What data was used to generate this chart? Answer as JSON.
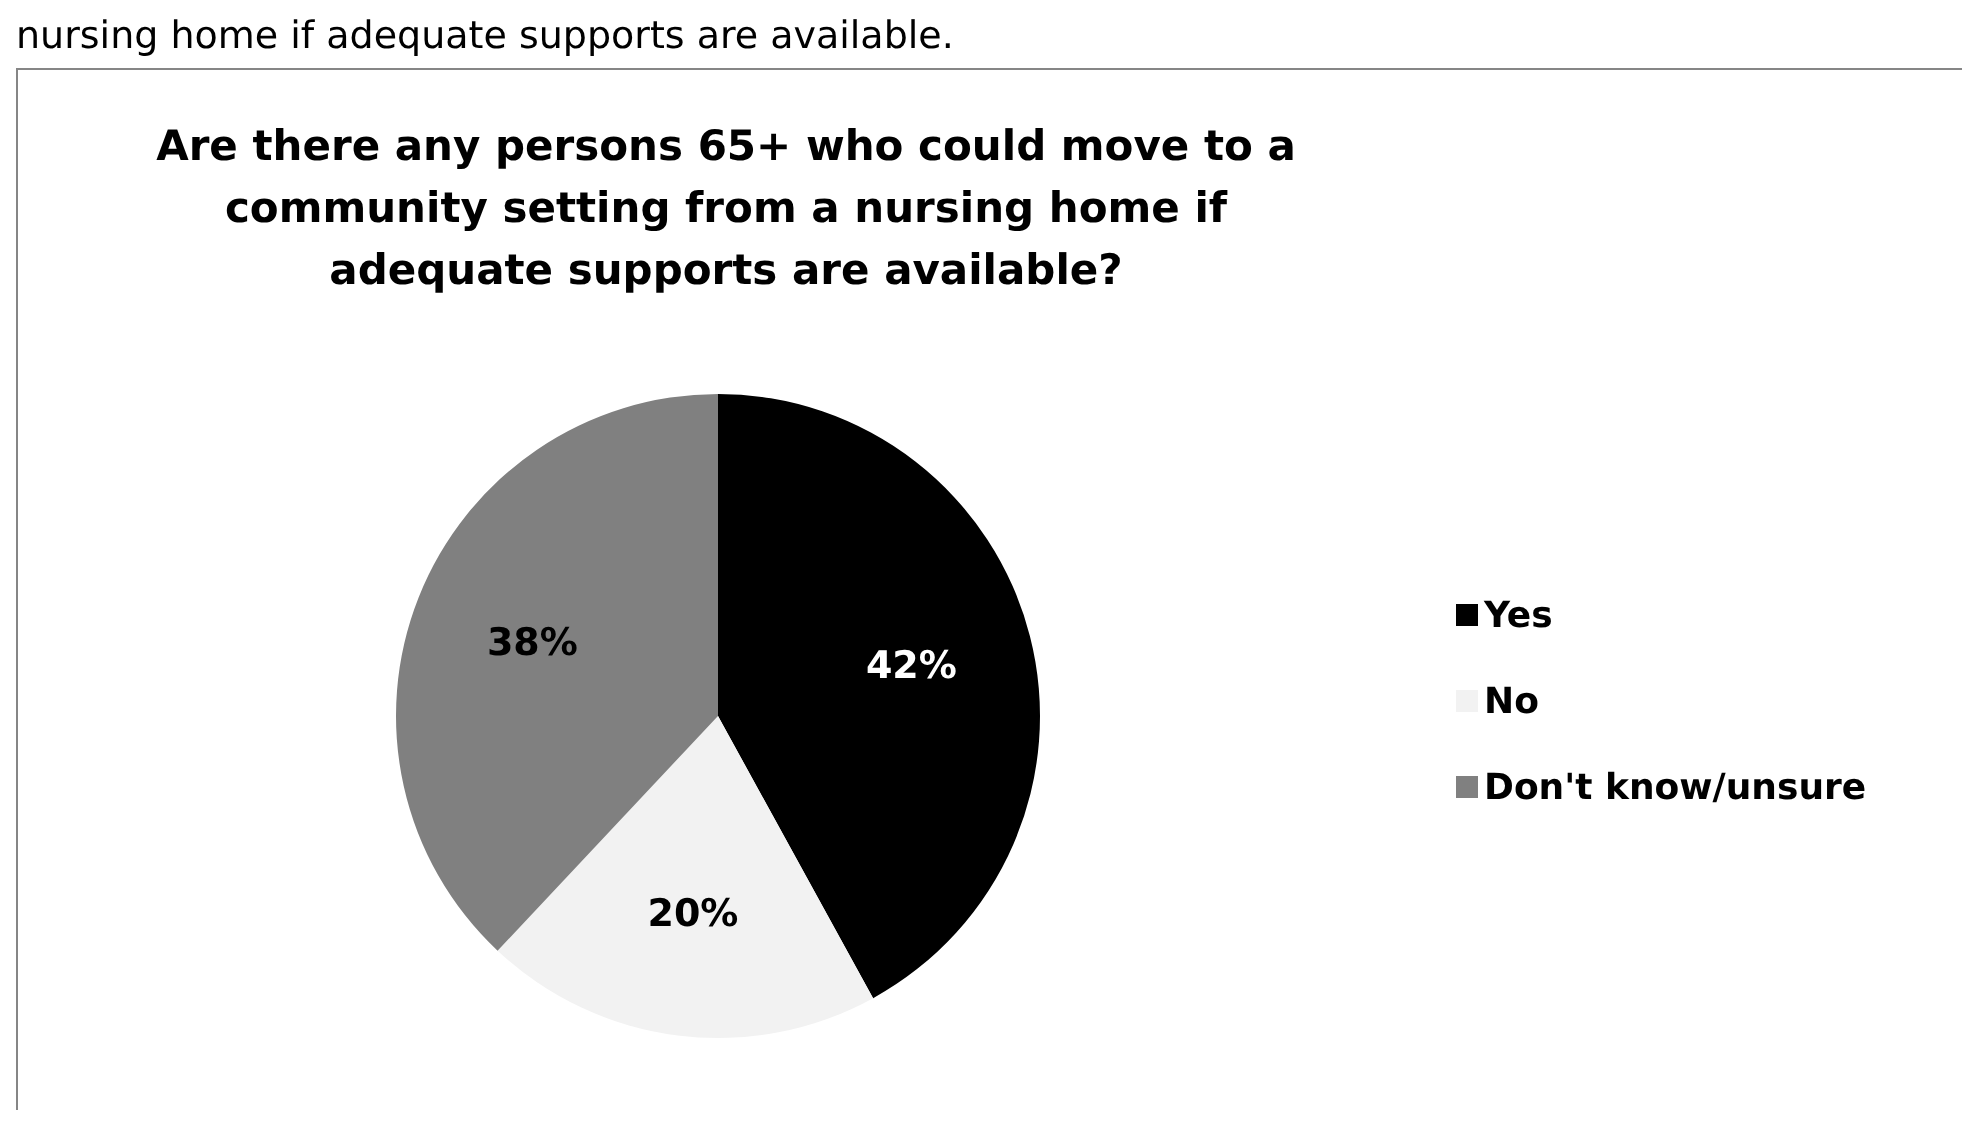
{
  "chart_data": {
    "type": "pie",
    "title": "Are there any persons 65+ who could move to a community setting from a nursing home if adequate supports are available?",
    "annotations": [
      "nursing home if adequate supports are available."
    ],
    "categories": [
      "Yes",
      "No",
      "Don't know/unsure"
    ],
    "values": [
      42,
      20,
      38
    ],
    "colors": [
      "#000000",
      "#f2f2f2",
      "#808080"
    ],
    "value_labels": [
      "42%",
      "20%",
      "38%"
    ],
    "legend": "right"
  }
}
